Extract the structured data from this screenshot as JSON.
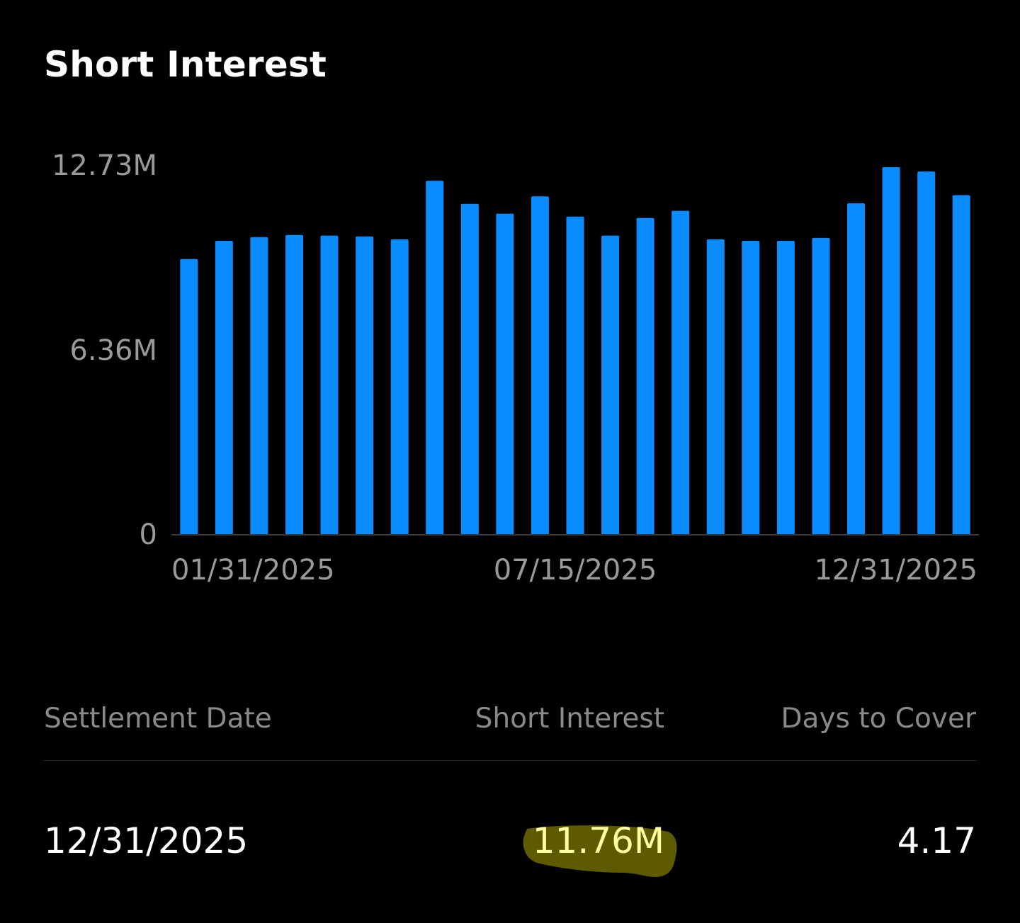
{
  "chart_data": {
    "type": "bar",
    "title": "Short Interest",
    "categories": [
      "",
      "",
      "",
      "",
      "",
      "",
      "",
      "",
      "",
      "",
      "",
      "",
      "",
      "",
      "",
      "",
      "",
      "",
      "",
      "",
      "",
      "",
      ""
    ],
    "x_tick_labels": [
      "01/31/2025",
      "07/15/2025",
      "12/31/2025"
    ],
    "y_tick_labels": [
      "0",
      "6.36M",
      "12.73M"
    ],
    "values": [
      9.55,
      10.18,
      10.31,
      10.38,
      10.36,
      10.33,
      10.23,
      12.26,
      11.46,
      11.12,
      11.72,
      11.02,
      10.36,
      10.97,
      11.22,
      10.23,
      10.18,
      10.18,
      10.28,
      11.48,
      12.73,
      12.58,
      11.76
    ],
    "ylim": [
      0,
      12.73
    ],
    "unit": "M",
    "grid": false,
    "color": "#0a8cff"
  },
  "table": {
    "headers": {
      "settlement_date": "Settlement Date",
      "short_interest": "Short Interest",
      "days_to_cover": "Days to Cover"
    },
    "row": {
      "settlement_date": "12/31/2025",
      "short_interest": "11.76M",
      "days_to_cover": "4.17"
    }
  },
  "colors": {
    "background": "#000000",
    "bar": "#0a8cff",
    "axis_text": "#9a9a9a",
    "highlight": "#5e5a00"
  }
}
